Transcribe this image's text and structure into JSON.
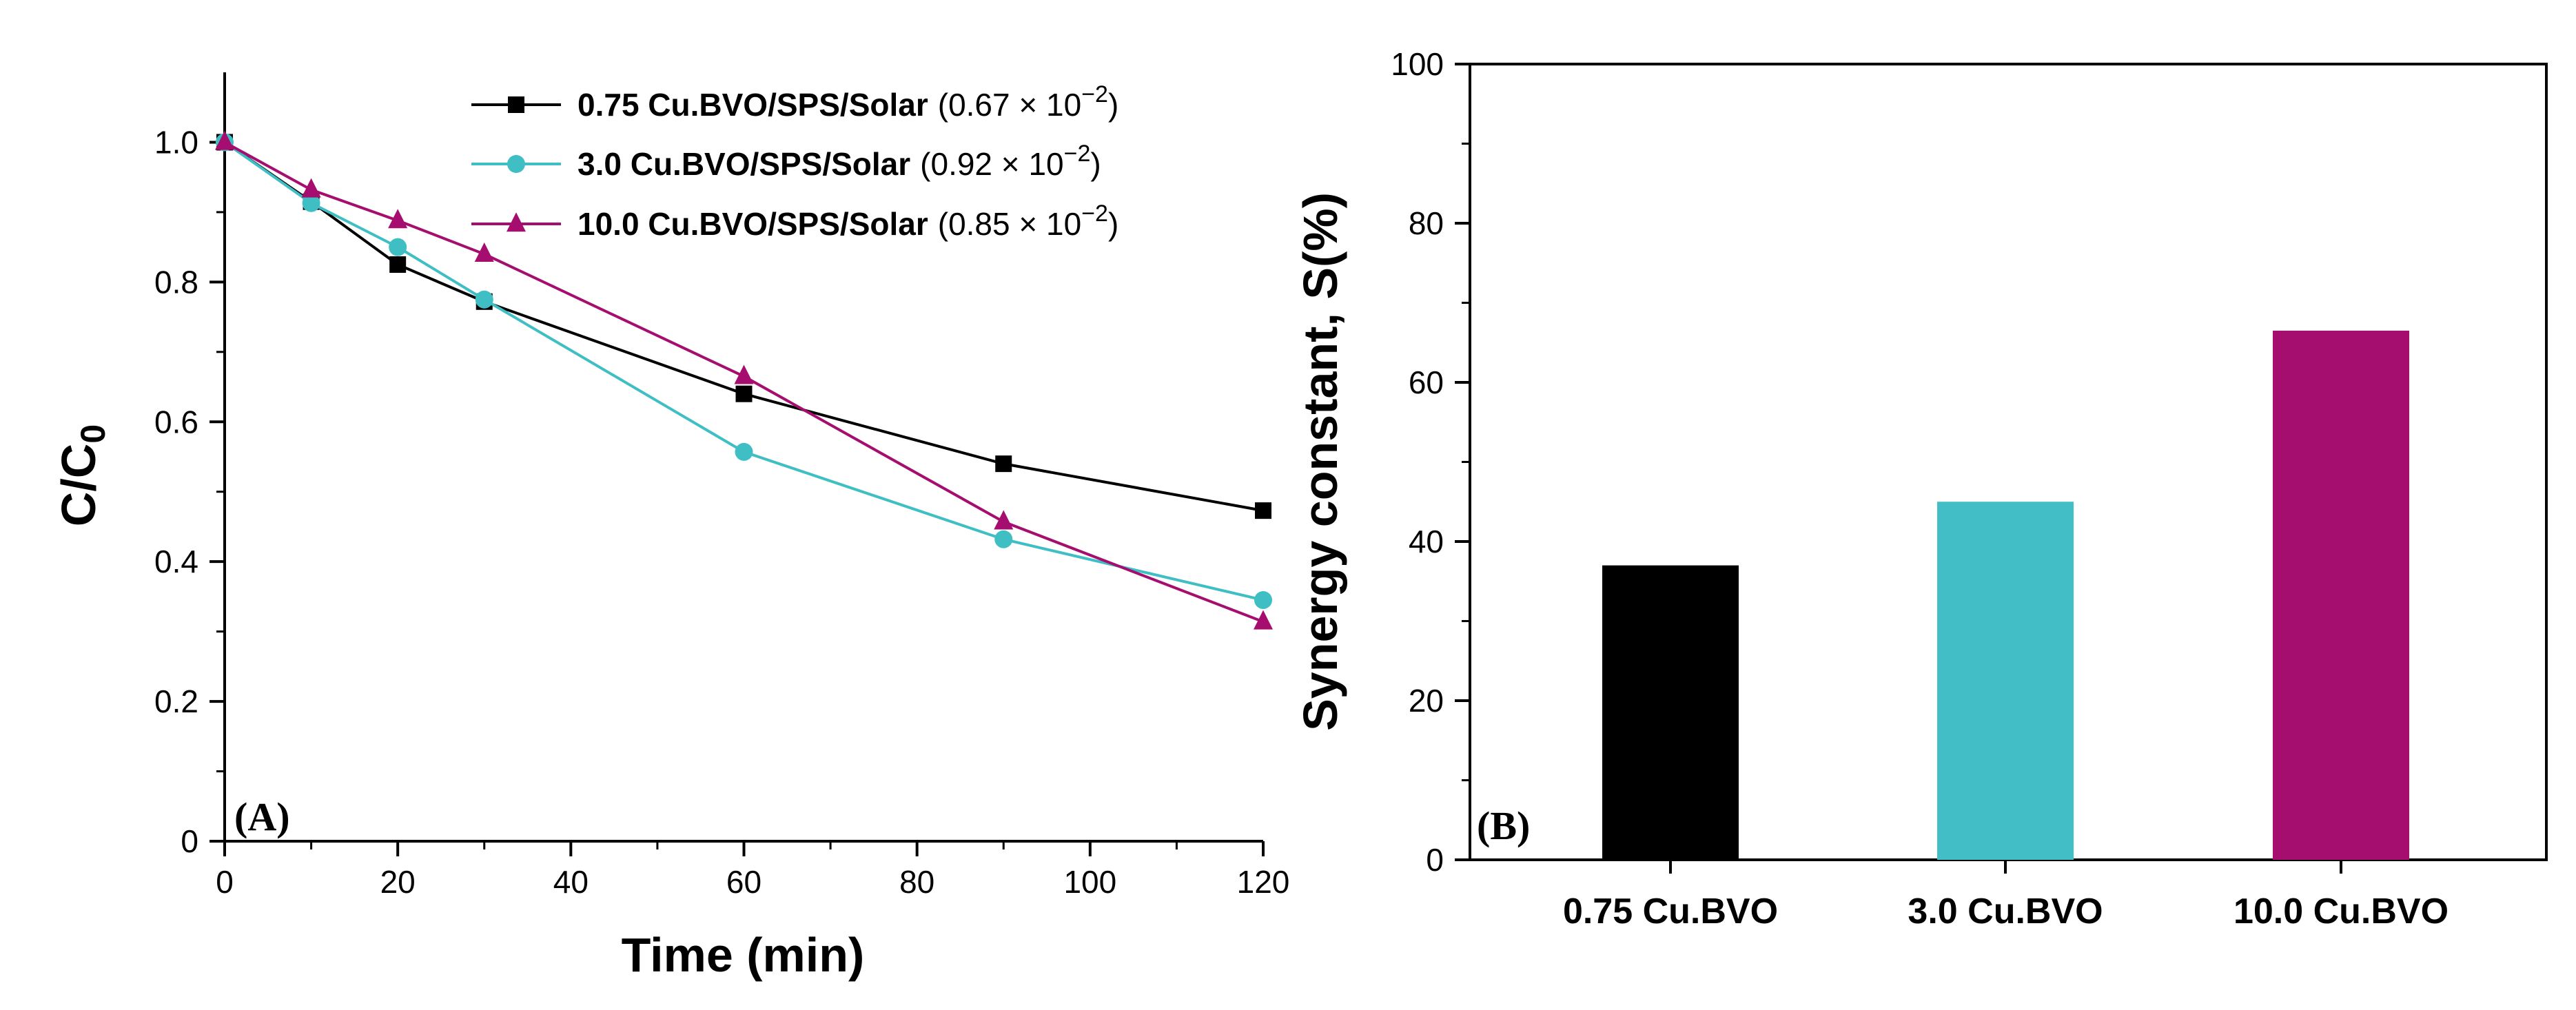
{
  "chart_data": [
    {
      "type": "line",
      "panel_label": "(A)",
      "xlabel": "Time (min)",
      "ylabel_main": "C/C",
      "ylabel_sub": "0",
      "xlim": [
        0,
        120
      ],
      "ylim": [
        0,
        1.1
      ],
      "xticks": [
        "0",
        "20",
        "40",
        "60",
        "80",
        "100",
        "120"
      ],
      "yticks": [
        "0",
        "0.2",
        "0.4",
        "0.6",
        "0.8",
        "1.0"
      ],
      "legend_position": "top-right",
      "series": [
        {
          "name": "0.75 Cu.BVO/SPS/Solar",
          "rate_mantissa": "(0.67 × 10",
          "rate_exponent": "−2",
          "rate_close": ")",
          "color": "#000000",
          "marker": "square",
          "x": [
            0,
            10,
            20,
            30,
            60,
            90,
            120
          ],
          "y": [
            1.0,
            0.915,
            0.825,
            0.772,
            0.64,
            0.54,
            0.473
          ]
        },
        {
          "name": "3.0 Cu.BVO/SPS/Solar",
          "rate_mantissa": "(0.92 × 10",
          "rate_exponent": "−2",
          "rate_close": ")",
          "color": "#3fbfc4",
          "marker": "circle",
          "x": [
            0,
            10,
            20,
            30,
            60,
            90,
            120
          ],
          "y": [
            1.0,
            0.913,
            0.85,
            0.775,
            0.557,
            0.432,
            0.345
          ]
        },
        {
          "name": "10.0 Cu.BVO/SPS/Solar",
          "rate_mantissa": "(0.85 × 10",
          "rate_exponent": "−2",
          "rate_close": ")",
          "color": "#a50d6e",
          "marker": "triangle",
          "x": [
            0,
            10,
            20,
            30,
            60,
            90,
            120
          ],
          "y": [
            1.0,
            0.932,
            0.888,
            0.84,
            0.665,
            0.457,
            0.314
          ]
        }
      ]
    },
    {
      "type": "bar",
      "panel_label": "(B)",
      "ylabel": "Synergy constant, S(%)",
      "ylim": [
        0,
        100
      ],
      "yticks": [
        "0",
        "20",
        "40",
        "60",
        "80",
        "100"
      ],
      "categories": [
        "0.75 Cu.BVO",
        "3.0 Cu.BVO",
        "10.0 Cu.BVO"
      ],
      "values": [
        37,
        45,
        66.5
      ],
      "colors": [
        "#000000",
        "#42bfc6",
        "#a50d6e"
      ]
    }
  ]
}
